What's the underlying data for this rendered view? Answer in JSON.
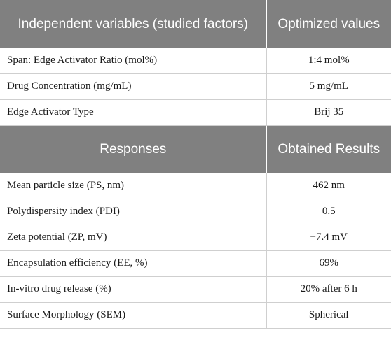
{
  "table": {
    "sections": [
      {
        "header": [
          "Independent variables (studied factors)",
          "Optimized values"
        ],
        "rows": [
          [
            "Span: Edge Activator Ratio (mol%)",
            "1:4 mol%"
          ],
          [
            "Drug Concentration (mg/mL)",
            "5 mg/mL"
          ],
          [
            "Edge Activator Type",
            "Brij 35"
          ]
        ]
      },
      {
        "header": [
          "Responses",
          "Obtained Results"
        ],
        "rows": [
          [
            "Mean particle size (PS, nm)",
            "462 nm"
          ],
          [
            "Polydispersity index (PDI)",
            "0.5"
          ],
          [
            "Zeta potential (ZP, mV)",
            "−7.4 mV"
          ],
          [
            "Encapsulation efficiency (EE, %)",
            "69%"
          ],
          [
            "In-vitro drug release (%)",
            "20% after 6 h"
          ],
          [
            "Surface Morphology (SEM)",
            "Spherical"
          ]
        ]
      }
    ],
    "colors": {
      "header_bg": "#808080",
      "header_text": "#ffffff",
      "grid": "#cfcfcf"
    }
  }
}
